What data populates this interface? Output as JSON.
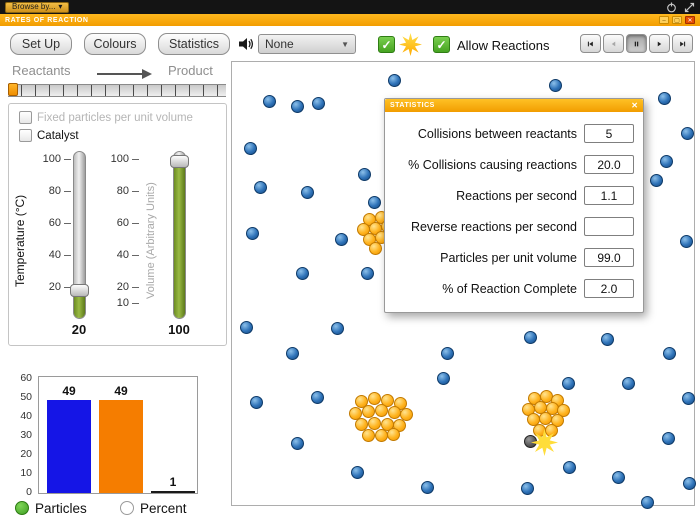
{
  "colors": {
    "accent_orange": "#f5a200",
    "green_check": "#5eb73c",
    "bar_blue": "#1515e6",
    "bar_orange": "#f57d00",
    "slider_green": "#7c9b30"
  },
  "browser_bar": {
    "browse_label": "Browse by..."
  },
  "titlebar": {
    "title": "RATES OF REACTION"
  },
  "toolbar": {
    "setup_label": "Set Up",
    "colours_label": "Colours",
    "statistics_label": "Statistics",
    "dropdown_value": "None",
    "allow_reactions_label": "Allow Reactions"
  },
  "reaction_progress": {
    "left_label": "Reactants",
    "right_label": "Product"
  },
  "controls_panel": {
    "fixed_particles_label": "Fixed particles per unit volume",
    "catalyst_label": "Catalyst",
    "temperature": {
      "title": "Temperature (°C)",
      "ticks": [
        100,
        80,
        60,
        40,
        20
      ],
      "min": 20,
      "max": 100,
      "value": "20"
    },
    "volume": {
      "title": "Volume (Arbitrary Units)",
      "ticks": [
        100,
        80,
        60,
        40,
        20,
        10
      ],
      "min": 10,
      "max": 100,
      "value": "100"
    }
  },
  "chart_data": {
    "type": "bar",
    "categories": [
      "blue-reactant",
      "orange-reactant",
      "product"
    ],
    "values": [
      49,
      49,
      1
    ],
    "value_labels": [
      "49",
      "49",
      "1"
    ],
    "bar_colors": [
      "#1515e6",
      "#f57d00",
      "#1a1a1a"
    ],
    "ylim": [
      0,
      60
    ],
    "yticks": [
      0,
      10,
      20,
      30,
      40,
      50,
      60
    ],
    "title": "",
    "xlabel": "",
    "ylabel": ""
  },
  "chart_controls": {
    "particles_label": "Particles",
    "percent_label": "Percent",
    "selected": "Particles"
  },
  "statistics_window": {
    "title": "STATISTICS",
    "rows": [
      {
        "label": "Collisions between reactants",
        "value": "5"
      },
      {
        "label": "% Collisions causing reactions",
        "value": "20.0"
      },
      {
        "label": "Reactions per second",
        "value": "1.1"
      },
      {
        "label": "Reverse reactions per second",
        "value": ""
      },
      {
        "label": "Particles per unit volume",
        "value": "99.0"
      },
      {
        "label": "% of Reaction Complete",
        "value": "2.0"
      }
    ]
  },
  "simulation": {
    "blue_particles": [
      [
        31,
        33
      ],
      [
        59,
        38
      ],
      [
        80,
        35
      ],
      [
        156,
        12
      ],
      [
        317,
        17
      ],
      [
        426,
        30
      ],
      [
        449,
        65
      ],
      [
        418,
        112
      ],
      [
        428,
        93
      ],
      [
        12,
        80
      ],
      [
        22,
        119
      ],
      [
        69,
        124
      ],
      [
        126,
        106
      ],
      [
        136,
        134
      ],
      [
        14,
        165
      ],
      [
        103,
        171
      ],
      [
        64,
        205
      ],
      [
        129,
        205
      ],
      [
        448,
        173
      ],
      [
        8,
        259
      ],
      [
        54,
        285
      ],
      [
        99,
        260
      ],
      [
        209,
        285
      ],
      [
        292,
        269
      ],
      [
        369,
        271
      ],
      [
        431,
        285
      ],
      [
        18,
        334
      ],
      [
        79,
        329
      ],
      [
        205,
        310
      ],
      [
        330,
        315
      ],
      [
        390,
        315
      ],
      [
        450,
        330
      ],
      [
        59,
        375
      ],
      [
        119,
        404
      ],
      [
        189,
        419
      ],
      [
        289,
        420
      ],
      [
        331,
        399
      ],
      [
        380,
        409
      ],
      [
        430,
        370
      ],
      [
        451,
        415
      ],
      [
        409,
        434
      ]
    ],
    "yellow_clusters": [
      [
        [
          131,
          151
        ],
        [
          143,
          149
        ],
        [
          125,
          161
        ],
        [
          137,
          160
        ],
        [
          149,
          158
        ],
        [
          131,
          171
        ],
        [
          143,
          169
        ],
        [
          155,
          166
        ],
        [
          137,
          180
        ]
      ],
      [
        [
          123,
          333
        ],
        [
          136,
          330
        ],
        [
          149,
          332
        ],
        [
          162,
          335
        ],
        [
          117,
          345
        ],
        [
          130,
          343
        ],
        [
          143,
          342
        ],
        [
          156,
          344
        ],
        [
          168,
          346
        ],
        [
          123,
          356
        ],
        [
          136,
          355
        ],
        [
          149,
          356
        ],
        [
          161,
          357
        ],
        [
          130,
          367
        ],
        [
          143,
          367
        ],
        [
          155,
          366
        ]
      ],
      [
        [
          296,
          330
        ],
        [
          308,
          328
        ],
        [
          319,
          332
        ],
        [
          290,
          341
        ],
        [
          302,
          339
        ],
        [
          314,
          340
        ],
        [
          325,
          342
        ],
        [
          295,
          351
        ],
        [
          307,
          350
        ],
        [
          319,
          352
        ],
        [
          301,
          362
        ],
        [
          313,
          362
        ]
      ]
    ],
    "dark_particle": [
      292,
      373
    ],
    "collision_star": [
      306,
      374
    ]
  }
}
